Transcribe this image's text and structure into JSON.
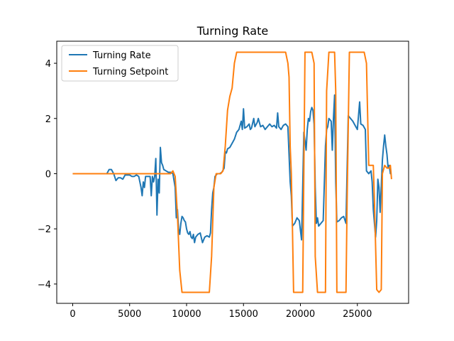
{
  "chart_data": {
    "type": "line",
    "title": "Turning Rate",
    "xlabel": "",
    "ylabel": "",
    "xlim": [
      -1400,
      29500
    ],
    "ylim": [
      -4.7,
      4.8
    ],
    "xticks": [
      0,
      5000,
      10000,
      15000,
      20000,
      25000
    ],
    "yticks": [
      -4,
      -2,
      0,
      2,
      4
    ],
    "grid": false,
    "legend_position": "top-left",
    "series": [
      {
        "name": "Turning Rate",
        "color": "#1f77b4",
        "points": [
          [
            0,
            0
          ],
          [
            3000,
            0
          ],
          [
            3200,
            0.15
          ],
          [
            3400,
            0.15
          ],
          [
            3600,
            0.0
          ],
          [
            3800,
            -0.25
          ],
          [
            4000,
            -0.15
          ],
          [
            4200,
            -0.15
          ],
          [
            4400,
            -0.2
          ],
          [
            4600,
            -0.05
          ],
          [
            4800,
            -0.05
          ],
          [
            5000,
            -0.05
          ],
          [
            5200,
            -0.1
          ],
          [
            5400,
            -0.1
          ],
          [
            5600,
            -0.05
          ],
          [
            5800,
            -0.1
          ],
          [
            6000,
            -0.5
          ],
          [
            6100,
            -0.8
          ],
          [
            6200,
            -0.3
          ],
          [
            6300,
            -0.5
          ],
          [
            6400,
            -0.1
          ],
          [
            6600,
            -0.1
          ],
          [
            6800,
            -0.1
          ],
          [
            6900,
            -0.8
          ],
          [
            7000,
            -0.1
          ],
          [
            7100,
            -0.3
          ],
          [
            7200,
            -0.1
          ],
          [
            7300,
            0.55
          ],
          [
            7400,
            -1.5
          ],
          [
            7500,
            -0.2
          ],
          [
            7600,
            -0.7
          ],
          [
            7700,
            0.95
          ],
          [
            7800,
            0.4
          ],
          [
            7900,
            0.3
          ],
          [
            8000,
            0.15
          ],
          [
            8200,
            0.1
          ],
          [
            8400,
            0.05
          ],
          [
            8600,
            0.05
          ],
          [
            8800,
            0.0
          ],
          [
            9000,
            -0.5
          ],
          [
            9100,
            -1.6
          ],
          [
            9200,
            -1.3
          ],
          [
            9300,
            -2.0
          ],
          [
            9400,
            -2.2
          ],
          [
            9500,
            -1.8
          ],
          [
            9600,
            -1.55
          ],
          [
            9700,
            -1.6
          ],
          [
            9800,
            -1.7
          ],
          [
            9900,
            -1.75
          ],
          [
            10000,
            -2.0
          ],
          [
            10100,
            -2.15
          ],
          [
            10200,
            -2.2
          ],
          [
            10300,
            -2.1
          ],
          [
            10400,
            -2.3
          ],
          [
            10500,
            -2.35
          ],
          [
            10600,
            -2.2
          ],
          [
            10700,
            -2.5
          ],
          [
            10800,
            -2.3
          ],
          [
            11000,
            -2.2
          ],
          [
            11200,
            -2.15
          ],
          [
            11400,
            -2.5
          ],
          [
            11600,
            -2.3
          ],
          [
            11800,
            -2.25
          ],
          [
            12000,
            -2.3
          ],
          [
            12100,
            -2.15
          ],
          [
            12200,
            -1.3
          ],
          [
            12300,
            -0.7
          ],
          [
            12400,
            -0.5
          ],
          [
            12500,
            -0.1
          ],
          [
            12700,
            0.0
          ],
          [
            12900,
            0.0
          ],
          [
            13100,
            0.05
          ],
          [
            13300,
            0.2
          ],
          [
            13400,
            0.8
          ],
          [
            13500,
            0.75
          ],
          [
            13600,
            0.9
          ],
          [
            13800,
            0.95
          ],
          [
            14000,
            1.1
          ],
          [
            14200,
            1.25
          ],
          [
            14400,
            1.5
          ],
          [
            14600,
            1.6
          ],
          [
            14800,
            1.9
          ],
          [
            14900,
            1.6
          ],
          [
            15000,
            2.35
          ],
          [
            15100,
            1.65
          ],
          [
            15300,
            1.7
          ],
          [
            15500,
            1.8
          ],
          [
            15600,
            1.6
          ],
          [
            15700,
            1.65
          ],
          [
            15900,
            2.0
          ],
          [
            16000,
            1.7
          ],
          [
            16200,
            1.85
          ],
          [
            16300,
            2.0
          ],
          [
            16500,
            1.7
          ],
          [
            16700,
            1.75
          ],
          [
            16900,
            1.6
          ],
          [
            17100,
            1.7
          ],
          [
            17300,
            1.8
          ],
          [
            17500,
            1.7
          ],
          [
            17700,
            1.75
          ],
          [
            17900,
            1.65
          ],
          [
            18000,
            2.2
          ],
          [
            18100,
            1.7
          ],
          [
            18300,
            1.6
          ],
          [
            18500,
            1.75
          ],
          [
            18700,
            1.8
          ],
          [
            18900,
            1.7
          ],
          [
            19100,
            -0.3
          ],
          [
            19200,
            -0.8
          ],
          [
            19300,
            -1.9
          ],
          [
            19500,
            -1.8
          ],
          [
            19700,
            -1.6
          ],
          [
            19900,
            -1.7
          ],
          [
            20100,
            -2.4
          ],
          [
            20200,
            -0.5
          ],
          [
            20300,
            1.5
          ],
          [
            20400,
            1.2
          ],
          [
            20500,
            0.85
          ],
          [
            20600,
            1.6
          ],
          [
            20700,
            2.0
          ],
          [
            20800,
            1.9
          ],
          [
            20900,
            2.25
          ],
          [
            21000,
            2.4
          ],
          [
            21100,
            2.3
          ],
          [
            21200,
            1.8
          ],
          [
            21300,
            -0.5
          ],
          [
            21400,
            -1.8
          ],
          [
            21500,
            -1.6
          ],
          [
            21600,
            -1.9
          ],
          [
            21800,
            -1.8
          ],
          [
            22000,
            -1.7
          ],
          [
            22200,
            1.0
          ],
          [
            22300,
            1.6
          ],
          [
            22400,
            1.7
          ],
          [
            22500,
            2.0
          ],
          [
            22700,
            1.9
          ],
          [
            22800,
            0.85
          ],
          [
            22900,
            2.0
          ],
          [
            23000,
            2.85
          ],
          [
            23100,
            -0.3
          ],
          [
            23200,
            -1.75
          ],
          [
            23400,
            -1.7
          ],
          [
            23600,
            -1.6
          ],
          [
            23800,
            -1.55
          ],
          [
            24000,
            -1.8
          ],
          [
            24200,
            2.1
          ],
          [
            24400,
            2.0
          ],
          [
            24600,
            1.9
          ],
          [
            24800,
            1.75
          ],
          [
            25000,
            1.6
          ],
          [
            25200,
            2.6
          ],
          [
            25300,
            1.8
          ],
          [
            25500,
            1.75
          ],
          [
            25700,
            1.6
          ],
          [
            25800,
            0.1
          ],
          [
            26000,
            0.0
          ],
          [
            26200,
            0.1
          ],
          [
            26300,
            -0.3
          ],
          [
            26400,
            -1.3
          ],
          [
            26600,
            -2.3
          ],
          [
            26700,
            -1.7
          ],
          [
            26800,
            -0.2
          ],
          [
            26900,
            -0.5
          ],
          [
            27000,
            -1.4
          ],
          [
            27200,
            0.5
          ],
          [
            27300,
            1.0
          ],
          [
            27400,
            1.4
          ],
          [
            27500,
            1.0
          ],
          [
            27600,
            0.7
          ],
          [
            27700,
            0.2
          ],
          [
            27800,
            0.3
          ],
          [
            27900,
            0.0
          ],
          [
            28000,
            0.0
          ]
        ]
      },
      {
        "name": "Turning Setpoint",
        "color": "#ff7f0e",
        "points": [
          [
            0,
            0
          ],
          [
            8600,
            0
          ],
          [
            8800,
            0.1
          ],
          [
            9000,
            -0.1
          ],
          [
            9200,
            -1.5
          ],
          [
            9400,
            -3.5
          ],
          [
            9600,
            -4.3
          ],
          [
            10000,
            -4.3
          ],
          [
            11500,
            -4.3
          ],
          [
            12000,
            -4.3
          ],
          [
            12200,
            -3.0
          ],
          [
            12400,
            -0.5
          ],
          [
            12600,
            0.0
          ],
          [
            13000,
            0.0
          ],
          [
            13200,
            0.1
          ],
          [
            13400,
            1.0
          ],
          [
            13600,
            2.3
          ],
          [
            13800,
            2.8
          ],
          [
            14000,
            3.1
          ],
          [
            14200,
            4.0
          ],
          [
            14400,
            4.4
          ],
          [
            15000,
            4.4
          ],
          [
            17000,
            4.4
          ],
          [
            18700,
            4.4
          ],
          [
            18900,
            4.0
          ],
          [
            19000,
            3.5
          ],
          [
            19100,
            1.0
          ],
          [
            19200,
            0.0
          ],
          [
            19300,
            -2.0
          ],
          [
            19400,
            -4.3
          ],
          [
            20000,
            -4.3
          ],
          [
            20200,
            -4.3
          ],
          [
            20400,
            4.4
          ],
          [
            21000,
            4.4
          ],
          [
            21200,
            4.0
          ],
          [
            21300,
            -3.0
          ],
          [
            21500,
            -4.3
          ],
          [
            22000,
            -4.3
          ],
          [
            22200,
            -4.3
          ],
          [
            22300,
            3.0
          ],
          [
            22500,
            4.4
          ],
          [
            23000,
            4.4
          ],
          [
            23100,
            3.0
          ],
          [
            23200,
            -4.3
          ],
          [
            23800,
            -4.3
          ],
          [
            24000,
            -4.3
          ],
          [
            24100,
            -1.0
          ],
          [
            24300,
            4.4
          ],
          [
            25000,
            4.4
          ],
          [
            25600,
            4.4
          ],
          [
            25800,
            4.0
          ],
          [
            26000,
            0.3
          ],
          [
            26200,
            0.3
          ],
          [
            26400,
            0.3
          ],
          [
            26500,
            -1.0
          ],
          [
            26700,
            -4.2
          ],
          [
            26900,
            -4.3
          ],
          [
            27100,
            -4.2
          ],
          [
            27200,
            0.0
          ],
          [
            27400,
            0.3
          ],
          [
            27600,
            0.2
          ],
          [
            27800,
            0.2
          ],
          [
            27900,
            0.3
          ],
          [
            28000,
            -0.2
          ]
        ]
      }
    ]
  }
}
